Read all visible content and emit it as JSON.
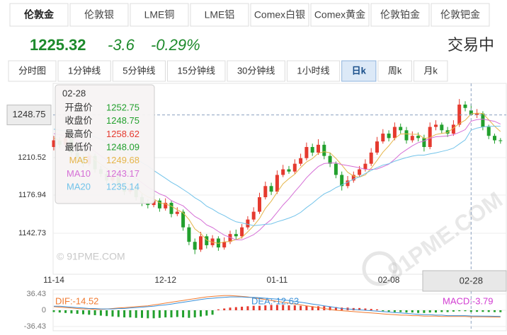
{
  "tabs": [
    {
      "label": "伦敦金",
      "active": true
    },
    {
      "label": "伦敦银",
      "active": false
    },
    {
      "label": "LME铜",
      "active": false
    },
    {
      "label": "LME铝",
      "active": false
    },
    {
      "label": "Comex白银",
      "active": false
    },
    {
      "label": "Comex黄金",
      "active": false
    },
    {
      "label": "伦敦铂金",
      "active": false
    },
    {
      "label": "伦敦钯金",
      "active": false
    }
  ],
  "quote": {
    "price": "1225.32",
    "change": "-3.6",
    "change_pct": "-0.29%",
    "status": "交易中",
    "color": "#1d8a2b"
  },
  "periods": [
    {
      "label": "分时图",
      "active": false
    },
    {
      "label": "1分钟线",
      "active": false
    },
    {
      "label": "5分钟线",
      "active": false
    },
    {
      "label": "15分钟线",
      "active": false
    },
    {
      "label": "30分钟线",
      "active": false
    },
    {
      "label": "1小时线",
      "active": false
    },
    {
      "label": "日k",
      "active": true
    },
    {
      "label": "周k",
      "active": false
    },
    {
      "label": "月k",
      "active": false
    }
  ],
  "chart_data": {
    "type": "candlestick",
    "categories": [
      "11-14",
      null,
      null,
      null,
      null,
      null,
      null,
      null,
      null,
      null,
      null,
      null,
      null,
      null,
      null,
      null,
      null,
      null,
      null,
      "12-12",
      null,
      null,
      null,
      null,
      null,
      null,
      null,
      null,
      null,
      null,
      null,
      null,
      null,
      null,
      null,
      null,
      null,
      null,
      "01-11",
      null,
      null,
      null,
      null,
      null,
      null,
      null,
      null,
      null,
      null,
      null,
      null,
      null,
      null,
      null,
      null,
      null,
      null,
      "02-08",
      null,
      null,
      null,
      null,
      null,
      null,
      null,
      null,
      null,
      null,
      null,
      null,
      null,
      "02-28",
      null,
      null,
      null,
      null,
      null
    ],
    "open": [
      1220,
      1226,
      1222,
      1228,
      1215,
      1210,
      1205,
      1212,
      1200,
      1196,
      1190,
      1194,
      1185,
      1180,
      1183,
      1175,
      1170,
      1168,
      1172,
      1165,
      1170,
      1160,
      1162,
      1148,
      1135,
      1128,
      1140,
      1132,
      1138,
      1130,
      1135,
      1142,
      1140,
      1148,
      1155,
      1162,
      1175,
      1185,
      1180,
      1195,
      1200,
      1198,
      1205,
      1210,
      1220,
      1215,
      1222,
      1212,
      1205,
      1195,
      1185,
      1190,
      1195,
      1200,
      1205,
      1215,
      1225,
      1232,
      1228,
      1238,
      1235,
      1226,
      1230,
      1228,
      1220,
      1238,
      1240,
      1235,
      1232,
      1240,
      1258,
      1252.75,
      1248.75,
      1250,
      1238,
      1230,
      1226
    ],
    "high": [
      1230,
      1229,
      1231,
      1232,
      1218,
      1213,
      1216,
      1214,
      1203,
      1199,
      1198,
      1197,
      1188,
      1187,
      1186,
      1178,
      1173,
      1176,
      1174,
      1174,
      1172,
      1166,
      1164,
      1151,
      1138,
      1144,
      1142,
      1141,
      1140,
      1139,
      1145,
      1146,
      1151,
      1158,
      1166,
      1179,
      1189,
      1188,
      1199,
      1204,
      1203,
      1209,
      1214,
      1224,
      1223,
      1227,
      1225,
      1215,
      1207,
      1198,
      1194,
      1198,
      1203,
      1209,
      1219,
      1229,
      1236,
      1235,
      1242,
      1241,
      1238,
      1234,
      1233,
      1231,
      1242,
      1244,
      1242,
      1238,
      1244,
      1263,
      1261,
      1258.62,
      1254,
      1252,
      1240,
      1232,
      1228
    ],
    "low": [
      1217,
      1219,
      1220,
      1212,
      1207,
      1202,
      1203,
      1197,
      1193,
      1187,
      1188,
      1182,
      1177,
      1178,
      1172,
      1167,
      1165,
      1166,
      1162,
      1163,
      1157,
      1158,
      1145,
      1132,
      1124,
      1126,
      1129,
      1130,
      1127,
      1128,
      1133,
      1137,
      1138,
      1146,
      1153,
      1160,
      1173,
      1177,
      1178,
      1193,
      1196,
      1196,
      1203,
      1208,
      1212,
      1213,
      1209,
      1202,
      1192,
      1181,
      1183,
      1188,
      1193,
      1198,
      1203,
      1213,
      1223,
      1225,
      1226,
      1232,
      1223,
      1224,
      1225,
      1216,
      1218,
      1235,
      1232,
      1229,
      1230,
      1238,
      1252,
      1248.09,
      1246,
      1235,
      1227,
      1223,
      1223
    ],
    "close": [
      1226,
      1222,
      1228,
      1215,
      1210,
      1205,
      1212,
      1200,
      1196,
      1190,
      1194,
      1185,
      1180,
      1183,
      1175,
      1170,
      1168,
      1172,
      1165,
      1170,
      1160,
      1162,
      1148,
      1135,
      1128,
      1140,
      1132,
      1138,
      1130,
      1135,
      1142,
      1140,
      1148,
      1155,
      1162,
      1175,
      1185,
      1180,
      1195,
      1200,
      1198,
      1205,
      1210,
      1220,
      1215,
      1222,
      1212,
      1205,
      1195,
      1185,
      1190,
      1195,
      1200,
      1205,
      1215,
      1225,
      1232,
      1228,
      1238,
      1235,
      1226,
      1230,
      1228,
      1220,
      1238,
      1240,
      1235,
      1232,
      1240,
      1258,
      1255,
      1248.75,
      1250,
      1238,
      1230,
      1226,
      1225.32
    ],
    "up_color": "#e53a2f",
    "down_color": "#22a02d",
    "ma_series": [
      {
        "name": "MA5",
        "color": "#e5b54a",
        "values": [
          1228,
          1226,
          1225,
          1223,
          1220.2,
          1216,
          1214,
          1208.4,
          1204.6,
          1200.6,
          1198.4,
          1193,
          1189,
          1186.4,
          1183.4,
          1178.6,
          1175.2,
          1173.6,
          1170,
          1169,
          1167,
          1163.8,
          1161,
          1155,
          1146.6,
          1142.6,
          1136.6,
          1134.6,
          1133.6,
          1135,
          1135.4,
          1137,
          1139,
          1144,
          1149.4,
          1156,
          1165,
          1171.4,
          1179.4,
          1187,
          1191.6,
          1195.6,
          1201.6,
          1206.6,
          1209.6,
          1214.4,
          1215.8,
          1214.8,
          1209.8,
          1203.8,
          1197.4,
          1194,
          1193,
          1195,
          1201,
          1208,
          1215.4,
          1221,
          1227.6,
          1231.6,
          1231.8,
          1231.4,
          1231.4,
          1227.8,
          1228.4,
          1231.2,
          1232.2,
          1233,
          1237,
          1241,
          1244,
          1249.68,
          1250.4,
          1250,
          1244.4,
          1238.6,
          1233.9
        ]
      },
      {
        "name": "MA10",
        "color": "#d56fd6",
        "values": [
          1232,
          1231,
          1230,
          1228,
          1226,
          1222,
          1220,
          1216,
          1212,
          1208.4,
          1205.2,
          1201,
          1198.5,
          1195.3,
          1192,
          1188,
          1184,
          1181,
          1178,
          1176,
          1172,
          1169.5,
          1167.3,
          1162.5,
          1157.8,
          1154.8,
          1150.2,
          1147.8,
          1144.3,
          1141,
          1139,
          1136.8,
          1136.8,
          1139,
          1141.4,
          1145.5,
          1150.8,
          1155,
          1161.5,
          1168,
          1173.6,
          1180,
          1186,
          1192.5,
          1197.8,
          1202.5,
          1205.2,
          1205.7,
          1205.7,
          1204.2,
          1203.4,
          1202.4,
          1201.4,
          1200,
          1200,
          1200.3,
          1202.3,
          1204.6,
          1209,
          1214,
          1217.6,
          1221.1,
          1223.9,
          1225.4,
          1227.7,
          1229.2,
          1229.5,
          1229.9,
          1231.1,
          1233.1,
          1235.6,
          1243.17,
          1244.5,
          1245,
          1244,
          1243,
          1240.5
        ]
      },
      {
        "name": "MA20",
        "color": "#72c3ea",
        "values": [
          1236,
          1235,
          1234.5,
          1234,
          1233,
          1232,
          1231,
          1229,
          1227,
          1224.5,
          1222,
          1219,
          1216,
          1213,
          1210,
          1206,
          1203,
          1199,
          1195.5,
          1192,
          1188.4,
          1185.4,
          1182,
          1178.5,
          1174.5,
          1171.4,
          1167,
          1164.3,
          1161,
          1158.5,
          1155.5,
          1153,
          1152,
          1150.7,
          1149.6,
          1150,
          1150.7,
          1151,
          1153,
          1154.5,
          1156.3,
          1158.4,
          1161.4,
          1165.7,
          1169.6,
          1174,
          1178,
          1180.4,
          1183.6,
          1186,
          1188.5,
          1191.2,
          1193.2,
          1196.3,
          1199,
          1201.5,
          1203.8,
          1205,
          1207.3,
          1209,
          1210.5,
          1211.8,
          1212.7,
          1212.7,
          1213.8,
          1214.8,
          1216,
          1217.3,
          1219,
          1222.7,
          1226.4,
          1235.14,
          1237,
          1238,
          1238.5,
          1238.6,
          1238.7
        ]
      }
    ],
    "ylim": [
      1106,
      1277
    ],
    "yticks": [
      1142.73,
      1176.94,
      1210.52
    ],
    "grid": true,
    "crosshair": {
      "value": 1248.75,
      "date": "02-28"
    },
    "tooltip_labels": [
      "开盘价",
      "收盘价",
      "最高价",
      "最低价"
    ],
    "watermark": "© 91PME.COM",
    "logo": "91PME.COM",
    "macd": {
      "ylim": [
        -36.43,
        36.43
      ],
      "yticks": [
        36.43,
        0,
        -36.43
      ],
      "hist": [
        -4,
        -5,
        -6,
        -7,
        -8,
        -9,
        -10,
        -11,
        -12,
        -13,
        -14,
        -15,
        -16,
        -16,
        -17,
        -17,
        -18,
        -18,
        -17,
        -16,
        -16,
        -15,
        -16,
        -17,
        -16,
        -14,
        -12,
        -10,
        2,
        4,
        6,
        7,
        8,
        9,
        10,
        10,
        11,
        12,
        12,
        12,
        11,
        11,
        10,
        10,
        9,
        9,
        9,
        8,
        7,
        6,
        6,
        5,
        5,
        4,
        3,
        2,
        -2,
        -3,
        -4,
        -4,
        -5,
        -5,
        -6,
        -6,
        -5,
        -5,
        -4,
        -4,
        -3,
        -2,
        -2,
        -3.79,
        -3.5,
        -3.6,
        -3.8,
        -4,
        -4.2
      ],
      "hist_label": "MACD:-3.79",
      "hist_label_color": "#d23cd2",
      "series": [
        {
          "label": "DIF:-14.52",
          "color": "#f07a30",
          "values": [
            8,
            7,
            6,
            5,
            4,
            3,
            3,
            2,
            2,
            3,
            4,
            5,
            6,
            7,
            8,
            9,
            10,
            12,
            14,
            16,
            18,
            20,
            22,
            24,
            26,
            28,
            30,
            31,
            32,
            33,
            33,
            32,
            31,
            30,
            28,
            26,
            24,
            22,
            20,
            18,
            16,
            14,
            12,
            10,
            8,
            6,
            4,
            2,
            0,
            -1,
            -2,
            -3,
            -4,
            -5,
            -6,
            -7,
            -8,
            -9,
            -10,
            -11,
            -11,
            -12,
            -12,
            -13,
            -13,
            -13,
            -14,
            -14,
            -14,
            -14,
            -14,
            -14.52,
            -14.6,
            -14.8,
            -15,
            -15.2,
            -15.5
          ]
        },
        {
          "label": "DEA:-12.63",
          "color": "#3a90d8",
          "values": [
            9,
            9,
            8,
            7,
            6,
            5,
            4,
            4,
            3,
            3,
            3,
            4,
            4,
            5,
            6,
            7,
            8,
            9,
            11,
            12,
            14,
            16,
            18,
            20,
            22,
            24,
            26,
            27,
            28,
            29,
            30,
            30,
            30,
            29,
            29,
            28,
            27,
            26,
            25,
            23,
            22,
            20,
            18,
            16,
            14,
            12,
            10,
            8,
            6,
            4,
            3,
            2,
            1,
            0,
            -1,
            -2,
            -3,
            -4,
            -5,
            -6,
            -7,
            -8,
            -9,
            -10,
            -10,
            -11,
            -11,
            -12,
            -12,
            -12,
            -12,
            -12.63,
            -12.8,
            -13,
            -13.2,
            -13.4,
            -13.6
          ]
        }
      ]
    }
  }
}
